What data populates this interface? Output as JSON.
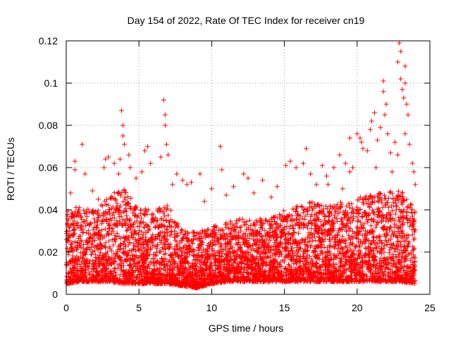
{
  "chart_data": {
    "type": "scatter",
    "title": "Day 154 of 2022, Rate Of TEC Index for receiver cn19",
    "xlabel": "GPS time / hours",
    "ylabel": "ROTI / TECUs",
    "xlim": [
      0,
      25
    ],
    "ylim": [
      0,
      0.12
    ],
    "x_ticks": [
      0,
      5,
      10,
      15,
      20,
      25
    ],
    "x_tick_labels": [
      "0",
      "5",
      "10",
      "15",
      "20",
      "25"
    ],
    "y_ticks": [
      0,
      0.02,
      0.04,
      0.06,
      0.08,
      0.1,
      0.12
    ],
    "y_tick_labels": [
      "0",
      "0.02",
      "0.04",
      "0.06",
      "0.08",
      "0.1",
      "0.12"
    ],
    "grid": true,
    "marker": "+",
    "color": "#ff0000",
    "data_span_hours": [
      0,
      24
    ],
    "baseline_band": {
      "x": [
        0,
        1,
        2,
        3,
        4,
        5,
        6,
        7,
        8,
        9,
        10,
        11,
        12,
        13,
        14,
        15,
        16,
        17,
        18,
        19,
        20,
        21,
        22,
        23,
        24
      ],
      "low": [
        0.005,
        0.006,
        0.006,
        0.006,
        0.005,
        0.005,
        0.005,
        0.005,
        0.004,
        0.003,
        0.005,
        0.006,
        0.006,
        0.006,
        0.006,
        0.006,
        0.006,
        0.006,
        0.006,
        0.006,
        0.006,
        0.006,
        0.006,
        0.006,
        0.005
      ],
      "high": [
        0.04,
        0.042,
        0.04,
        0.048,
        0.05,
        0.04,
        0.042,
        0.042,
        0.03,
        0.03,
        0.032,
        0.034,
        0.036,
        0.036,
        0.036,
        0.04,
        0.042,
        0.044,
        0.042,
        0.044,
        0.046,
        0.048,
        0.048,
        0.05,
        0.04
      ]
    },
    "series": [
      {
        "name": "ROTI",
        "points": [
          [
            1.1,
            0.071
          ],
          [
            0.6,
            0.063
          ],
          [
            0.6,
            0.059
          ],
          [
            0.3,
            0.048
          ],
          [
            1.3,
            0.057
          ],
          [
            2.6,
            0.06
          ],
          [
            2.7,
            0.064
          ],
          [
            2.9,
            0.065
          ],
          [
            3.3,
            0.062
          ],
          [
            3.6,
            0.057
          ],
          [
            3.8,
            0.087
          ],
          [
            3.9,
            0.08
          ],
          [
            3.9,
            0.075
          ],
          [
            4.0,
            0.071
          ],
          [
            3.7,
            0.064
          ],
          [
            4.3,
            0.066
          ],
          [
            4.4,
            0.06
          ],
          [
            5.4,
            0.068
          ],
          [
            5.6,
            0.07
          ],
          [
            5.8,
            0.062
          ],
          [
            6.5,
            0.065
          ],
          [
            6.7,
            0.092
          ],
          [
            6.8,
            0.085
          ],
          [
            6.8,
            0.08
          ],
          [
            6.9,
            0.071
          ],
          [
            7.0,
            0.066
          ],
          [
            7.3,
            0.052
          ],
          [
            8.0,
            0.054
          ],
          [
            8.3,
            0.052
          ],
          [
            8.6,
            0.053
          ],
          [
            9.2,
            0.057
          ],
          [
            10.0,
            0.05
          ],
          [
            10.6,
            0.07
          ],
          [
            10.7,
            0.059
          ],
          [
            11.5,
            0.051
          ],
          [
            12.2,
            0.057
          ],
          [
            12.5,
            0.055
          ],
          [
            13.5,
            0.054
          ],
          [
            14.1,
            0.046
          ],
          [
            14.5,
            0.051
          ],
          [
            15.1,
            0.061
          ],
          [
            15.4,
            0.063
          ],
          [
            15.8,
            0.06
          ],
          [
            16.3,
            0.062
          ],
          [
            16.5,
            0.069
          ],
          [
            16.8,
            0.057
          ],
          [
            17.6,
            0.061
          ],
          [
            17.9,
            0.056
          ],
          [
            18.4,
            0.06
          ],
          [
            18.8,
            0.066
          ],
          [
            19.2,
            0.062
          ],
          [
            19.5,
            0.058
          ],
          [
            19.5,
            0.074
          ],
          [
            19.7,
            0.06
          ],
          [
            20.0,
            0.076
          ],
          [
            20.2,
            0.074
          ],
          [
            20.3,
            0.072
          ],
          [
            20.4,
            0.069
          ],
          [
            20.7,
            0.068
          ],
          [
            20.9,
            0.078
          ],
          [
            21.0,
            0.082
          ],
          [
            21.2,
            0.086
          ],
          [
            21.4,
            0.073
          ],
          [
            21.6,
            0.079
          ],
          [
            21.8,
            0.101
          ],
          [
            21.8,
            0.096
          ],
          [
            21.9,
            0.085
          ],
          [
            22.0,
            0.09
          ],
          [
            22.1,
            0.076
          ],
          [
            22.3,
            0.067
          ],
          [
            22.6,
            0.072
          ],
          [
            22.8,
            0.11
          ],
          [
            22.9,
            0.119
          ],
          [
            23.0,
            0.115
          ],
          [
            23.0,
            0.102
          ],
          [
            23.1,
            0.097
          ],
          [
            23.2,
            0.093
          ],
          [
            23.3,
            0.108
          ],
          [
            23.3,
            0.1
          ],
          [
            23.4,
            0.09
          ],
          [
            23.5,
            0.085
          ],
          [
            23.3,
            0.076
          ],
          [
            22.8,
            0.066
          ],
          [
            23.6,
            0.071
          ],
          [
            23.8,
            0.062
          ],
          [
            23.9,
            0.058
          ],
          [
            1.8,
            0.049
          ],
          [
            2.2,
            0.045
          ],
          [
            4.8,
            0.055
          ],
          [
            5.2,
            0.058
          ],
          [
            7.6,
            0.057
          ],
          [
            9.5,
            0.044
          ],
          [
            11.0,
            0.047
          ],
          [
            12.9,
            0.048
          ],
          [
            17.2,
            0.052
          ],
          [
            18.0,
            0.052
          ],
          [
            19.0,
            0.05
          ],
          [
            21.3,
            0.06
          ],
          [
            22.4,
            0.058
          ],
          [
            24.0,
            0.052
          ]
        ]
      }
    ]
  }
}
